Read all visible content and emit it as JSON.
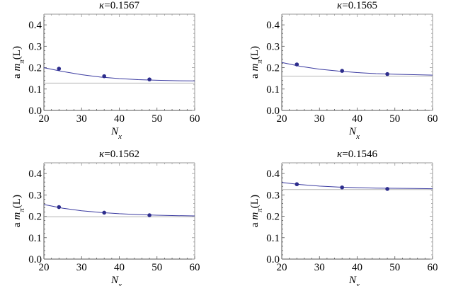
{
  "chart_data": [
    {
      "type": "scatter",
      "title": "κ=0.1567",
      "xlabel": "N",
      "xlabel_sub": "x",
      "ylabel": "a m",
      "ylabel_sub": "π",
      "ylabel_suffix": "(L)",
      "xlim": [
        20,
        60
      ],
      "ylim": [
        0.0,
        0.45
      ],
      "xticks": [
        20,
        30,
        40,
        50,
        60
      ],
      "xtick_labels": [
        "20",
        "30",
        "40",
        "50",
        "60"
      ],
      "yticks": [
        0.0,
        0.1,
        0.2,
        0.3,
        0.4
      ],
      "ytick_labels": [
        "0.0",
        "0.1",
        "0.2",
        "0.3",
        "0.4"
      ],
      "points": {
        "x": [
          24,
          36,
          48
        ],
        "y": [
          0.195,
          0.16,
          0.145
        ]
      },
      "fit": {
        "x": [
          20,
          25,
          30,
          35,
          40,
          45,
          50,
          55,
          60
        ],
        "y": [
          0.2,
          0.182,
          0.167,
          0.156,
          0.149,
          0.144,
          0.141,
          0.139,
          0.138
        ]
      },
      "asymptote": 0.128
    },
    {
      "type": "scatter",
      "title": "κ=0.1565",
      "xlabel": "N",
      "xlabel_sub": "x",
      "ylabel": "a m",
      "ylabel_sub": "π",
      "ylabel_suffix": "(L)",
      "xlim": [
        20,
        60
      ],
      "ylim": [
        0.0,
        0.45
      ],
      "xticks": [
        20,
        30,
        40,
        50,
        60
      ],
      "xtick_labels": [
        "20",
        "30",
        "40",
        "50",
        "60"
      ],
      "yticks": [
        0.0,
        0.1,
        0.2,
        0.3,
        0.4
      ],
      "ytick_labels": [
        "0.0",
        "0.1",
        "0.2",
        "0.3",
        "0.4"
      ],
      "points": {
        "x": [
          24,
          36,
          48
        ],
        "y": [
          0.215,
          0.185,
          0.17
        ]
      },
      "fit": {
        "x": [
          20,
          25,
          30,
          35,
          40,
          45,
          50,
          55,
          60
        ],
        "y": [
          0.224,
          0.206,
          0.193,
          0.184,
          0.177,
          0.172,
          0.169,
          0.167,
          0.165
        ]
      },
      "asymptote": 0.16
    },
    {
      "type": "scatter",
      "title": "κ=0.1562",
      "xlabel": "N",
      "xlabel_sub": "x",
      "ylabel": "a m",
      "ylabel_sub": "π",
      "ylabel_suffix": "(L)",
      "xlim": [
        20,
        60
      ],
      "ylim": [
        0.0,
        0.45
      ],
      "xticks": [
        20,
        30,
        40,
        50,
        60
      ],
      "xtick_labels": [
        "20",
        "30",
        "40",
        "50",
        "60"
      ],
      "yticks": [
        0.0,
        0.1,
        0.2,
        0.3,
        0.4
      ],
      "ytick_labels": [
        "0.0",
        "0.1",
        "0.2",
        "0.3",
        "0.4"
      ],
      "points": {
        "x": [
          24,
          36,
          48
        ],
        "y": [
          0.243,
          0.217,
          0.205
        ]
      },
      "fit": {
        "x": [
          20,
          25,
          30,
          35,
          40,
          45,
          50,
          55,
          60
        ],
        "y": [
          0.255,
          0.238,
          0.226,
          0.218,
          0.212,
          0.208,
          0.205,
          0.203,
          0.202
        ]
      },
      "asymptote": 0.198
    },
    {
      "type": "scatter",
      "title": "κ=0.1546",
      "xlabel": "N",
      "xlabel_sub": "x",
      "ylabel": "a m",
      "ylabel_sub": "π",
      "ylabel_suffix": "(L)",
      "xlim": [
        20,
        60
      ],
      "ylim": [
        0.0,
        0.45
      ],
      "xticks": [
        20,
        30,
        40,
        50,
        60
      ],
      "xtick_labels": [
        "20",
        "30",
        "40",
        "50",
        "60"
      ],
      "yticks": [
        0.0,
        0.1,
        0.2,
        0.3,
        0.4
      ],
      "ytick_labels": [
        "0.0",
        "0.1",
        "0.2",
        "0.3",
        "0.4"
      ],
      "points": {
        "x": [
          24,
          36,
          48
        ],
        "y": [
          0.35,
          0.335,
          0.328
        ]
      },
      "fit": {
        "x": [
          20,
          25,
          30,
          35,
          40,
          45,
          50,
          55,
          60
        ],
        "y": [
          0.358,
          0.348,
          0.341,
          0.337,
          0.334,
          0.332,
          0.331,
          0.33,
          0.329
        ]
      },
      "asymptote": 0.325
    }
  ],
  "colors": {
    "axes": "#555555",
    "frame": "#999999",
    "points": "#2d2d8c",
    "fit": "#3a3aa0",
    "asymptote": "#b4b4b4"
  }
}
